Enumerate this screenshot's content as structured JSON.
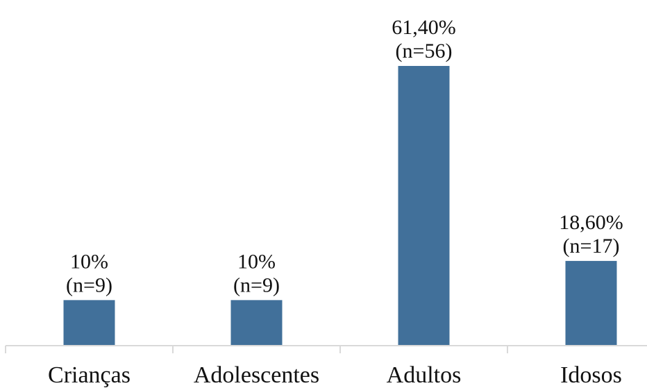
{
  "chart_data": {
    "type": "bar",
    "title": "",
    "xlabel": "",
    "ylabel": "",
    "categories": [
      "Crianças",
      "Adolescentes",
      "Adultos",
      "Idosos"
    ],
    "values": [
      10,
      10,
      61.4,
      18.6
    ],
    "counts": [
      9,
      9,
      56,
      17
    ],
    "data_labels": [
      {
        "percent": "10%",
        "n": "(n=9)"
      },
      {
        "percent": "10%",
        "n": "(n=9)"
      },
      {
        "percent": "61,40%",
        "n": "(n=56)"
      },
      {
        "percent": "18,60%",
        "n": "(n=17)"
      }
    ],
    "ylim": [
      0,
      61.4
    ],
    "grid": false,
    "legend": "none",
    "bar_color": "#41709a"
  }
}
